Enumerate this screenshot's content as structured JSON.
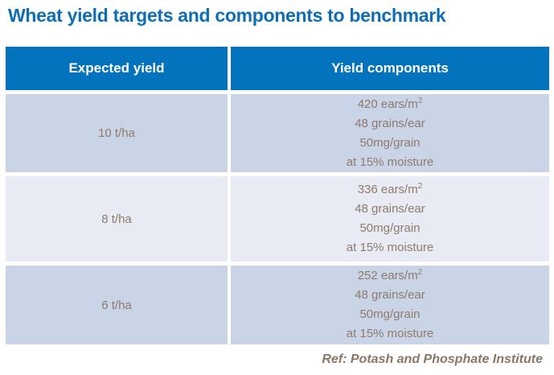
{
  "title": "Wheat yield targets and components to benchmark",
  "table": {
    "headers": [
      "Expected yield",
      "Yield components"
    ],
    "rows": [
      {
        "expected_yield": "10 t/ha",
        "ears_base": "420 ears/m",
        "ears_sup": "2",
        "grains_per_ear": "48 grains/ear",
        "grain_weight": "50mg/grain",
        "moisture": "at 15% moisture"
      },
      {
        "expected_yield": "8 t/ha",
        "ears_base": "336 ears/m",
        "ears_sup": "2",
        "grains_per_ear": "48 grains/ear",
        "grain_weight": "50mg/grain",
        "moisture": "at 15% moisture"
      },
      {
        "expected_yield": "6 t/ha",
        "ears_base": "252 ears/m",
        "ears_sup": "2",
        "grains_per_ear": "48 grains/ear",
        "grain_weight": "50mg/grain",
        "moisture": "at 15% moisture"
      }
    ]
  },
  "footer": {
    "reference": "Ref: Potash and Phosphate Institute"
  },
  "colors": {
    "title_blue": "#0d6eb6",
    "header_blue": "#0473be",
    "row_dark_blue": "#cad4e7",
    "row_light_blue": "#e8ebf3",
    "body_text_brown": "#8d7b6c"
  }
}
